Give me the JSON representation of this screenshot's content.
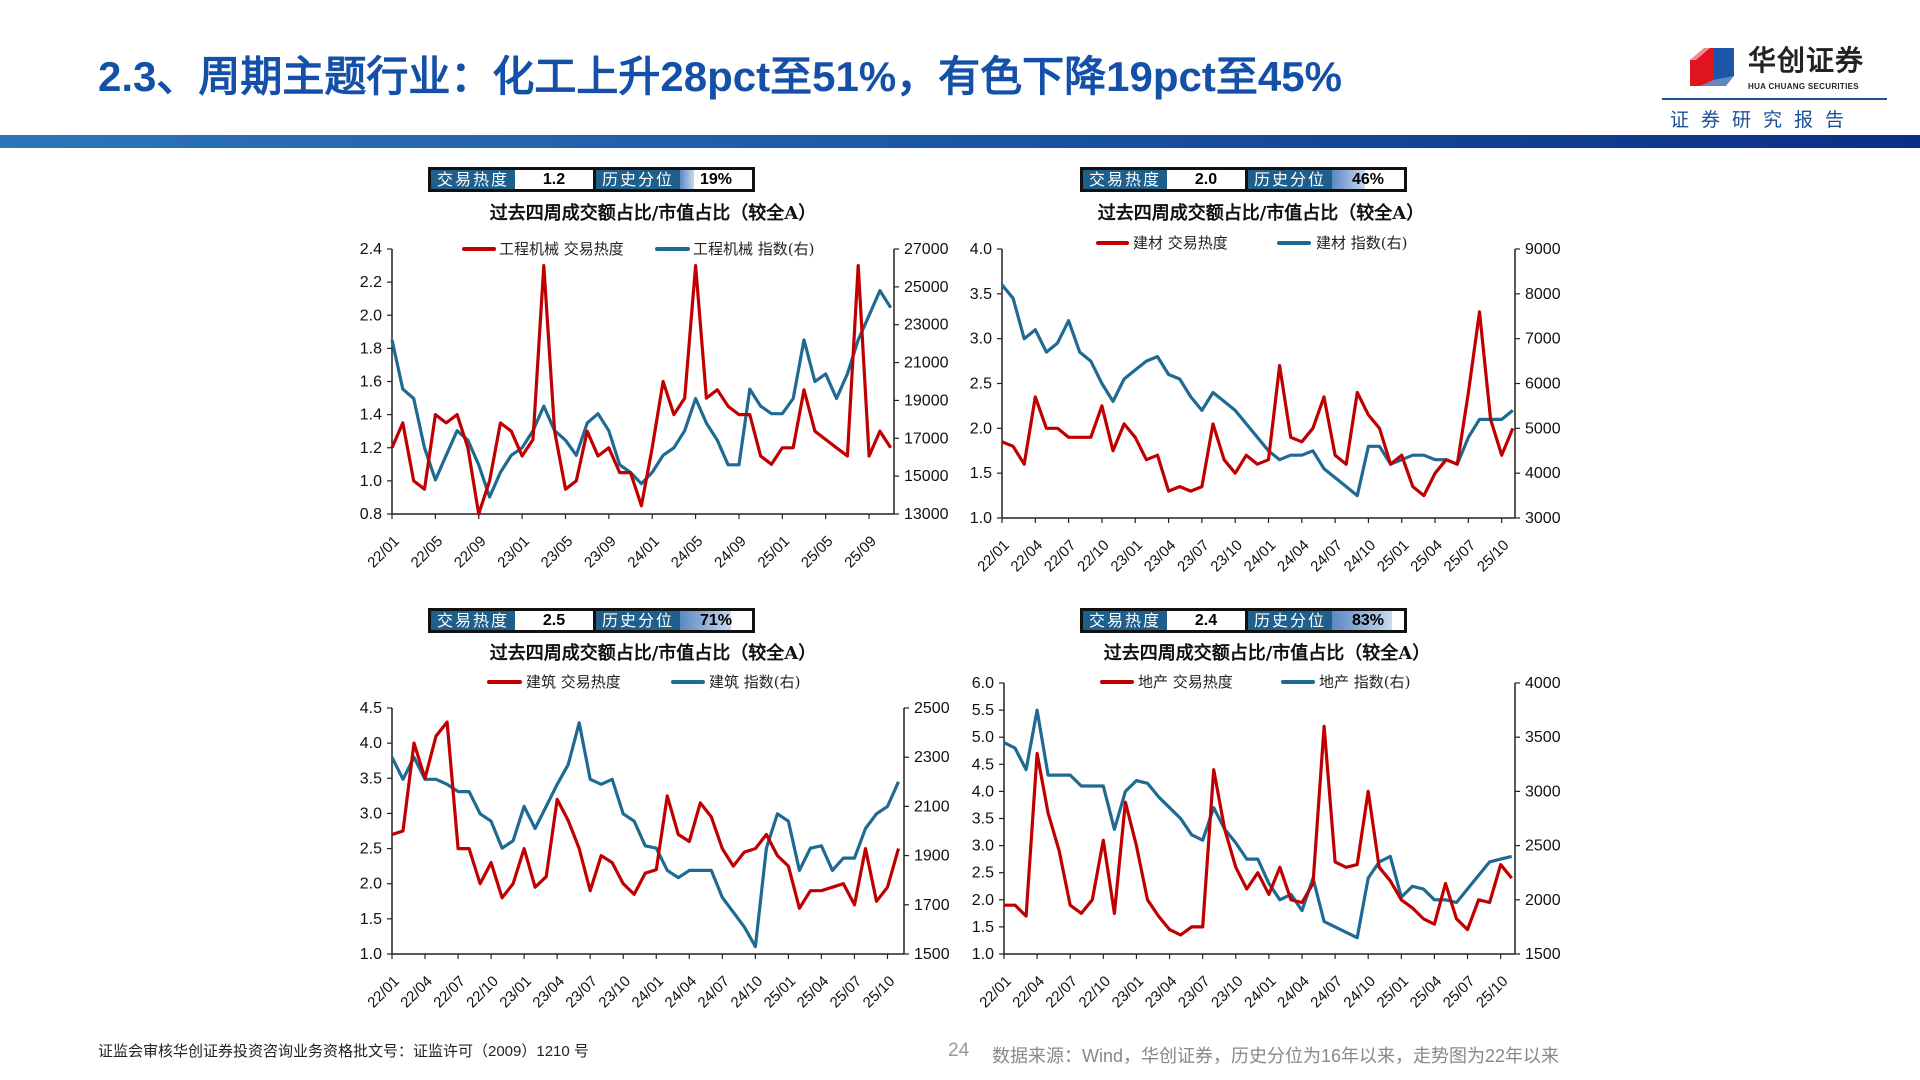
{
  "header": {
    "title": "2.3、周期主题行业：化工上升28pct至51%，有色下降19pct至45%",
    "logo_cn": "华创证券",
    "logo_en": "HUA CHUANG SECURITIES",
    "logo_sub": "证券研究报告"
  },
  "colors": {
    "title": "#1550a8",
    "heat_series": "#c00000",
    "index_series": "#1f6a93",
    "heat_label_bg": "#1f5f8b"
  },
  "footer": {
    "license": "证监会审核华创证券投资咨询业务资格批文号：证监许可（2009）1210 号",
    "page": "24",
    "source": "数据来源：Wind，华创证券，历史分位为16年以来，走势图为22年以来"
  },
  "chart_data": [
    {
      "type": "line",
      "heat": {
        "label": "交易热度",
        "value": "1.2",
        "pct_label": "历史分位",
        "pct_text": "19%",
        "percentile": 19
      },
      "title": "过去四周成交额占比/市值占比（较全A）",
      "x": [
        "2022-01",
        "2022-02",
        "2022-03",
        "2022-04",
        "2022-05",
        "2022-06",
        "2022-07",
        "2022-08",
        "2022-09",
        "2022-10",
        "2022-11",
        "2022-12",
        "2023-01",
        "2023-02",
        "2023-03",
        "2023-04",
        "2023-05",
        "2023-06",
        "2023-07",
        "2023-08",
        "2023-09",
        "2023-10",
        "2023-11",
        "2023-12",
        "2024-01",
        "2024-02",
        "2024-03",
        "2024-04",
        "2024-05",
        "2024-06",
        "2024-07",
        "2024-08",
        "2024-09",
        "2024-10",
        "2024-11",
        "2024-12",
        "2025-01",
        "2025-02",
        "2025-03",
        "2025-04",
        "2025-05",
        "2025-06",
        "2025-07",
        "2025-08",
        "2025-09",
        "2025-10",
        "2025-11"
      ],
      "xticks": [
        "22/01",
        "22/05",
        "22/09",
        "23/01",
        "23/05",
        "23/09",
        "24/01",
        "24/05",
        "24/09",
        "25/01",
        "25/05",
        "25/09"
      ],
      "xtick_step": 4,
      "ylim_left": [
        0.8,
        2.4
      ],
      "yticks_left": [
        "0.8",
        "1.0",
        "1.2",
        "1.4",
        "1.6",
        "1.8",
        "2.0",
        "2.2",
        "2.4"
      ],
      "ylim_right": [
        13000,
        27000
      ],
      "yticks_right": [
        "13000",
        "15000",
        "17000",
        "19000",
        "21000",
        "23000",
        "25000",
        "27000"
      ],
      "series": [
        {
          "name": "工程机械 交易热度",
          "axis": "left",
          "values": [
            1.2,
            1.35,
            1.0,
            0.95,
            1.4,
            1.35,
            1.4,
            1.2,
            0.8,
            1.0,
            1.35,
            1.3,
            1.15,
            1.25,
            2.3,
            1.3,
            0.95,
            1.0,
            1.3,
            1.15,
            1.2,
            1.05,
            1.05,
            0.85,
            1.2,
            1.6,
            1.4,
            1.5,
            2.3,
            1.5,
            1.55,
            1.45,
            1.4,
            1.4,
            1.15,
            1.1,
            1.2,
            1.2,
            1.55,
            1.3,
            1.25,
            1.2,
            1.15,
            2.3,
            1.15,
            1.3,
            1.2
          ]
        },
        {
          "name": "工程机械 指数(右)",
          "axis": "right",
          "values": [
            22200,
            19600,
            19100,
            16500,
            14800,
            16100,
            17400,
            16900,
            15600,
            13900,
            15200,
            16100,
            16500,
            17400,
            18700,
            17400,
            16900,
            16100,
            17800,
            18300,
            17400,
            15600,
            15200,
            14600,
            15200,
            16100,
            16500,
            17400,
            19100,
            17800,
            16900,
            15600,
            15600,
            19600,
            18700,
            18300,
            18300,
            19100,
            22200,
            20000,
            20400,
            19100,
            20400,
            22200,
            23500,
            24800,
            23900
          ]
        }
      ]
    },
    {
      "type": "line",
      "heat": {
        "label": "交易热度",
        "value": "2.0",
        "pct_label": "历史分位",
        "pct_text": "46%",
        "percentile": 46
      },
      "title": "过去四周成交额占比/市值占比（较全A）",
      "x": [
        "2022-01",
        "2022-02",
        "2022-03",
        "2022-04",
        "2022-05",
        "2022-06",
        "2022-07",
        "2022-08",
        "2022-09",
        "2022-10",
        "2022-11",
        "2022-12",
        "2023-01",
        "2023-02",
        "2023-03",
        "2023-04",
        "2023-05",
        "2023-06",
        "2023-07",
        "2023-08",
        "2023-09",
        "2023-10",
        "2023-11",
        "2023-12",
        "2024-01",
        "2024-02",
        "2024-03",
        "2024-04",
        "2024-05",
        "2024-06",
        "2024-07",
        "2024-08",
        "2024-09",
        "2024-10",
        "2024-11",
        "2024-12",
        "2025-01",
        "2025-02",
        "2025-03",
        "2025-04",
        "2025-05",
        "2025-06",
        "2025-07",
        "2025-08",
        "2025-09",
        "2025-10",
        "2025-11"
      ],
      "xticks": [
        "22/01",
        "22/04",
        "22/07",
        "22/10",
        "23/01",
        "23/04",
        "23/07",
        "23/10",
        "24/01",
        "24/04",
        "24/07",
        "24/10",
        "25/01",
        "25/04",
        "25/07",
        "25/10"
      ],
      "xtick_step": 3,
      "ylim_left": [
        1.0,
        4.0
      ],
      "yticks_left": [
        "1.0",
        "1.5",
        "2.0",
        "2.5",
        "3.0",
        "3.5",
        "4.0"
      ],
      "ylim_right": [
        3000,
        9000
      ],
      "yticks_right": [
        "3000",
        "4000",
        "5000",
        "6000",
        "7000",
        "8000",
        "9000"
      ],
      "series": [
        {
          "name": "建材 交易热度",
          "axis": "left",
          "values": [
            1.85,
            1.8,
            1.6,
            2.35,
            2.0,
            2.0,
            1.9,
            1.9,
            1.9,
            2.25,
            1.75,
            2.05,
            1.9,
            1.65,
            1.7,
            1.3,
            1.35,
            1.3,
            1.35,
            2.05,
            1.65,
            1.5,
            1.7,
            1.6,
            1.65,
            2.7,
            1.9,
            1.85,
            2.0,
            2.35,
            1.7,
            1.6,
            2.4,
            2.15,
            2.0,
            1.6,
            1.7,
            1.35,
            1.25,
            1.5,
            1.65,
            1.6,
            2.4,
            3.3,
            2.1,
            1.7,
            2.0
          ]
        },
        {
          "name": "建材 指数(右)",
          "axis": "right",
          "values": [
            8200,
            7900,
            7000,
            7200,
            6700,
            6900,
            7400,
            6700,
            6500,
            6000,
            5600,
            6100,
            6300,
            6500,
            6600,
            6200,
            6100,
            5700,
            5400,
            5800,
            5600,
            5400,
            5100,
            4800,
            4500,
            4300,
            4400,
            4400,
            4500,
            4100,
            3900,
            3700,
            3500,
            4600,
            4600,
            4200,
            4300,
            4400,
            4400,
            4300,
            4300,
            4200,
            4800,
            5200,
            5200,
            5200,
            5400
          ]
        }
      ]
    },
    {
      "type": "line",
      "heat": {
        "label": "交易热度",
        "value": "2.5",
        "pct_label": "历史分位",
        "pct_text": "71%",
        "percentile": 71
      },
      "title": "过去四周成交额占比/市值占比（较全A）",
      "x": [
        "2022-01",
        "2022-02",
        "2022-03",
        "2022-04",
        "2022-05",
        "2022-06",
        "2022-07",
        "2022-08",
        "2022-09",
        "2022-10",
        "2022-11",
        "2022-12",
        "2023-01",
        "2023-02",
        "2023-03",
        "2023-04",
        "2023-05",
        "2023-06",
        "2023-07",
        "2023-08",
        "2023-09",
        "2023-10",
        "2023-11",
        "2023-12",
        "2024-01",
        "2024-02",
        "2024-03",
        "2024-04",
        "2024-05",
        "2024-06",
        "2024-07",
        "2024-08",
        "2024-09",
        "2024-10",
        "2024-11",
        "2024-12",
        "2025-01",
        "2025-02",
        "2025-03",
        "2025-04",
        "2025-05",
        "2025-06",
        "2025-07",
        "2025-08",
        "2025-09",
        "2025-10",
        "2025-11"
      ],
      "xticks": [
        "22/01",
        "22/04",
        "22/07",
        "22/10",
        "23/01",
        "23/04",
        "23/07",
        "23/10",
        "24/01",
        "24/04",
        "24/07",
        "24/10",
        "25/01",
        "25/04",
        "25/07",
        "25/10"
      ],
      "xtick_step": 3,
      "ylim_left": [
        1.0,
        4.5
      ],
      "yticks_left": [
        "1.0",
        "1.5",
        "2.0",
        "2.5",
        "3.0",
        "3.5",
        "4.0",
        "4.5"
      ],
      "ylim_right": [
        1500,
        2500
      ],
      "yticks_right": [
        "1500",
        "1700",
        "1900",
        "2100",
        "2300",
        "2500"
      ],
      "series": [
        {
          "name": "建筑 交易热度",
          "axis": "left",
          "values": [
            2.7,
            2.75,
            4.0,
            3.5,
            4.1,
            4.3,
            2.5,
            2.5,
            2.0,
            2.3,
            1.8,
            2.0,
            2.5,
            1.95,
            2.1,
            3.2,
            2.9,
            2.5,
            1.9,
            2.4,
            2.3,
            2.0,
            1.85,
            2.15,
            2.2,
            3.25,
            2.7,
            2.6,
            3.15,
            2.95,
            2.5,
            2.25,
            2.45,
            2.5,
            2.7,
            2.4,
            2.25,
            1.65,
            1.9,
            1.9,
            1.95,
            2.0,
            1.7,
            2.5,
            1.75,
            1.95,
            2.5
          ]
        },
        {
          "name": "建筑 指数(右)",
          "axis": "right",
          "values": [
            2300,
            2210,
            2300,
            2210,
            2210,
            2190,
            2160,
            2160,
            2070,
            2040,
            1930,
            1960,
            2100,
            2010,
            2100,
            2190,
            2270,
            2440,
            2210,
            2190,
            2210,
            2070,
            2040,
            1940,
            1930,
            1840,
            1810,
            1840,
            1840,
            1840,
            1730,
            1670,
            1610,
            1530,
            1930,
            2070,
            2040,
            1840,
            1930,
            1940,
            1840,
            1890,
            1890,
            2010,
            2070,
            2100,
            2200
          ]
        }
      ]
    },
    {
      "type": "line",
      "heat": {
        "label": "交易热度",
        "value": "2.4",
        "pct_label": "历史分位",
        "pct_text": "83%",
        "percentile": 83
      },
      "title": "过去四周成交额占比/市值占比（较全A）",
      "x": [
        "2022-01",
        "2022-02",
        "2022-03",
        "2022-04",
        "2022-05",
        "2022-06",
        "2022-07",
        "2022-08",
        "2022-09",
        "2022-10",
        "2022-11",
        "2022-12",
        "2023-01",
        "2023-02",
        "2023-03",
        "2023-04",
        "2023-05",
        "2023-06",
        "2023-07",
        "2023-08",
        "2023-09",
        "2023-10",
        "2023-11",
        "2023-12",
        "2024-01",
        "2024-02",
        "2024-03",
        "2024-04",
        "2024-05",
        "2024-06",
        "2024-07",
        "2024-08",
        "2024-09",
        "2024-10",
        "2024-11",
        "2024-12",
        "2025-01",
        "2025-02",
        "2025-03",
        "2025-04",
        "2025-05",
        "2025-06",
        "2025-07",
        "2025-08",
        "2025-09",
        "2025-10",
        "2025-11"
      ],
      "xticks": [
        "22/01",
        "22/04",
        "22/07",
        "22/10",
        "23/01",
        "23/04",
        "23/07",
        "23/10",
        "24/01",
        "24/04",
        "24/07",
        "24/10",
        "25/01",
        "25/04",
        "25/07",
        "25/10"
      ],
      "xtick_step": 3,
      "ylim_left": [
        1.0,
        6.0
      ],
      "yticks_left": [
        "1.0",
        "1.5",
        "2.0",
        "2.5",
        "3.0",
        "3.5",
        "4.0",
        "4.5",
        "5.0",
        "5.5",
        "6.0"
      ],
      "ylim_right": [
        1500,
        4000
      ],
      "yticks_right": [
        "1500",
        "2000",
        "2500",
        "3000",
        "3500",
        "4000"
      ],
      "series": [
        {
          "name": "地产 交易热度",
          "axis": "left",
          "values": [
            1.9,
            1.9,
            1.7,
            4.7,
            3.6,
            2.9,
            1.9,
            1.75,
            2.0,
            3.1,
            1.75,
            3.8,
            3.0,
            2.0,
            1.7,
            1.45,
            1.35,
            1.5,
            1.5,
            4.4,
            3.3,
            2.6,
            2.2,
            2.5,
            2.1,
            2.6,
            2.0,
            1.95,
            2.3,
            5.2,
            2.7,
            2.6,
            2.65,
            4.0,
            2.6,
            2.35,
            2.0,
            1.85,
            1.65,
            1.55,
            2.3,
            1.65,
            1.45,
            2.0,
            1.95,
            2.65,
            2.4
          ]
        },
        {
          "name": "地产 指数(右)",
          "axis": "right",
          "values": [
            3450,
            3400,
            3200,
            3750,
            3150,
            3150,
            3150,
            3050,
            3050,
            3050,
            2650,
            3000,
            3100,
            3075,
            2950,
            2850,
            2750,
            2600,
            2550,
            2850,
            2650,
            2525,
            2375,
            2375,
            2150,
            2000,
            2050,
            1900,
            2200,
            1800,
            1750,
            1700,
            1650,
            2200,
            2350,
            2400,
            2025,
            2125,
            2100,
            2000,
            2000,
            1975,
            2100,
            2225,
            2350,
            2375,
            2400
          ]
        }
      ]
    }
  ]
}
